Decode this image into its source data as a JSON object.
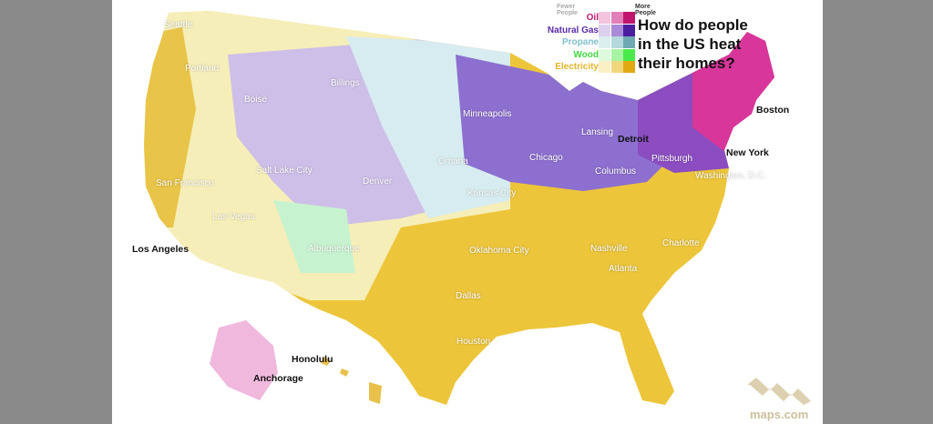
{
  "title": "How do people in the US heat their homes?",
  "legend": {
    "fewer_label": "Fewer People",
    "more_label": "More People",
    "items": [
      {
        "label": "Oil",
        "color": "#c0156e",
        "shades": [
          "#f2c4de",
          "#e27fb8",
          "#c0156e"
        ]
      },
      {
        "label": "Natural Gas",
        "color": "#5b2aa8",
        "shades": [
          "#dcd0ee",
          "#a88ad8",
          "#4b1ea0"
        ]
      },
      {
        "label": "Propane",
        "color": "#7fbfcc",
        "shades": [
          "#dcefef",
          "#b4d8dc",
          "#6fa9b4"
        ]
      },
      {
        "label": "Wood",
        "color": "#3fd63f",
        "shades": [
          "#ddfbdc",
          "#a6f4a2",
          "#4aea4a"
        ]
      },
      {
        "label": "Electricity",
        "color": "#e3b52a",
        "shades": [
          "#fbefc4",
          "#f1d77b",
          "#e1aa12"
        ]
      }
    ]
  },
  "cities": [
    {
      "name": "Seattle",
      "style": "light"
    },
    {
      "name": "Portland",
      "style": "light"
    },
    {
      "name": "Boise",
      "style": "light"
    },
    {
      "name": "Billings",
      "style": "light"
    },
    {
      "name": "Minneapolis",
      "style": "light"
    },
    {
      "name": "Lansing",
      "style": "light"
    },
    {
      "name": "Detroit",
      "style": "dark"
    },
    {
      "name": "Chicago",
      "style": "light"
    },
    {
      "name": "Omaha",
      "style": "light"
    },
    {
      "name": "Salt Lake City",
      "style": "light"
    },
    {
      "name": "Denver",
      "style": "light"
    },
    {
      "name": "San Francisco",
      "style": "light"
    },
    {
      "name": "Las Vegas",
      "style": "light"
    },
    {
      "name": "Los Angeles",
      "style": "dark"
    },
    {
      "name": "Albuquerque",
      "style": "light"
    },
    {
      "name": "Kansas City",
      "style": "light"
    },
    {
      "name": "Oklahoma City",
      "style": "light"
    },
    {
      "name": "Columbus",
      "style": "light"
    },
    {
      "name": "Pittsburgh",
      "style": "light"
    },
    {
      "name": "Washington, D.C.",
      "style": "light"
    },
    {
      "name": "New York",
      "style": "dark"
    },
    {
      "name": "Boston",
      "style": "dark"
    },
    {
      "name": "Nashville",
      "style": "light"
    },
    {
      "name": "Charlotte",
      "style": "light"
    },
    {
      "name": "Atlanta",
      "style": "light"
    },
    {
      "name": "Dallas",
      "style": "light"
    },
    {
      "name": "Houston",
      "style": "light"
    },
    {
      "name": "Honolulu",
      "style": "dark"
    },
    {
      "name": "Anchorage",
      "style": "dark"
    }
  ],
  "brand": "maps.com"
}
